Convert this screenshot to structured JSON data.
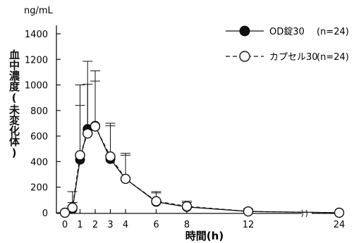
{
  "chart_data": {
    "type": "line",
    "title": "",
    "y_unit": "ng/mL",
    "ylabel": "血中濃度(未変化体)",
    "xlabel": "時間(h)",
    "ylim": [
      0,
      1400
    ],
    "yticks": [
      0,
      200,
      400,
      600,
      800,
      1000,
      1200,
      1400
    ],
    "xticks": [
      "0",
      "1",
      "2",
      "3",
      "4",
      "6",
      "8",
      "12",
      "24"
    ],
    "axis_break_between": [
      12,
      24
    ],
    "grid": false,
    "legend_position": "top-right",
    "series": [
      {
        "name": "OD錠30",
        "n_label": "(n=24)",
        "marker": "filled-circle",
        "line": "solid",
        "x": [
          0,
          0.5,
          1,
          1.5,
          2,
          3,
          4,
          6,
          8,
          12,
          24
        ],
        "y": [
          0,
          30,
          415,
          655,
          680,
          420,
          265,
          85,
          45,
          10,
          0
        ],
        "error_upper": [
          0,
          80,
          840,
          1005,
          1110,
          680,
          465,
          165,
          90,
          30,
          5
        ]
      },
      {
        "name": "カプセル30",
        "n_label": "(n=24)",
        "marker": "open-circle",
        "line": "dashed",
        "x": [
          0,
          0.5,
          1,
          1.5,
          2,
          3,
          4,
          6,
          8,
          12,
          24
        ],
        "y": [
          0,
          40,
          450,
          620,
          675,
          440,
          265,
          90,
          50,
          10,
          0
        ],
        "error_upper": [
          0,
          165,
          1000,
          1185,
          1030,
          700,
          450,
          155,
          80,
          30,
          5
        ]
      }
    ]
  }
}
